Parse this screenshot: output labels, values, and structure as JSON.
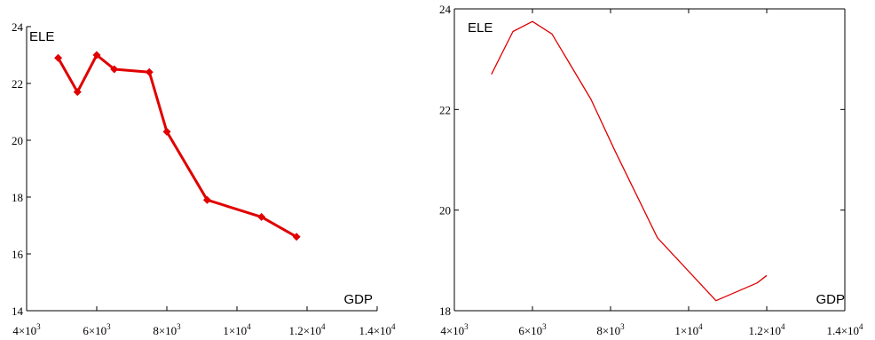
{
  "chart_data": [
    {
      "type": "line",
      "markers": "diamond",
      "color": "#e00000",
      "xlabel": "GDP",
      "ylabel": "ELE",
      "xlim": [
        4000,
        14000
      ],
      "ylim": [
        14,
        24
      ],
      "x_ticks": [
        {
          "value": 4000,
          "mant": "4×10",
          "exp": "3"
        },
        {
          "value": 6000,
          "mant": "6×10",
          "exp": "3"
        },
        {
          "value": 8000,
          "mant": "8×10",
          "exp": "3"
        },
        {
          "value": 10000,
          "mant": "1×10",
          "exp": "4"
        },
        {
          "value": 12000,
          "mant": "1.2×10",
          "exp": "4"
        },
        {
          "value": 14000,
          "mant": "1.4×10",
          "exp": "4"
        }
      ],
      "y_ticks": [
        {
          "value": 14,
          "label": "14"
        },
        {
          "value": 16,
          "label": "16"
        },
        {
          "value": 18,
          "label": "18"
        },
        {
          "value": 20,
          "label": "20"
        },
        {
          "value": 22,
          "label": "22"
        },
        {
          "value": 24,
          "label": "24"
        }
      ],
      "series": [
        {
          "x": [
            4900,
            5450,
            6000,
            6500,
            7500,
            8000,
            9150,
            10700,
            11700
          ],
          "y": [
            22.9,
            21.7,
            23.0,
            22.5,
            22.4,
            20.3,
            17.9,
            17.3,
            16.6
          ]
        }
      ]
    },
    {
      "type": "line",
      "markers": "none",
      "color": "#e00000",
      "xlabel": "GDP",
      "ylabel": "ELE",
      "xlim": [
        4000,
        14000
      ],
      "ylim": [
        18,
        24
      ],
      "x_ticks": [
        {
          "value": 4000,
          "mant": "4×10",
          "exp": "3"
        },
        {
          "value": 6000,
          "mant": "6×10",
          "exp": "3"
        },
        {
          "value": 8000,
          "mant": "8×10",
          "exp": "3"
        },
        {
          "value": 10000,
          "mant": "1×10",
          "exp": "4"
        },
        {
          "value": 12000,
          "mant": "1.2×10",
          "exp": "4"
        },
        {
          "value": 14000,
          "mant": "1.4×10",
          "exp": "4"
        }
      ],
      "y_ticks": [
        {
          "value": 18,
          "label": "18"
        },
        {
          "value": 20,
          "label": "20"
        },
        {
          "value": 22,
          "label": "22"
        },
        {
          "value": 24,
          "label": "24"
        }
      ],
      "series": [
        {
          "x": [
            4950,
            5500,
            6000,
            6500,
            7500,
            8100,
            9200,
            10700,
            11750,
            12000
          ],
          "y": [
            22.7,
            23.55,
            23.75,
            23.5,
            22.2,
            21.2,
            19.45,
            18.2,
            18.55,
            18.7
          ]
        }
      ]
    }
  ]
}
